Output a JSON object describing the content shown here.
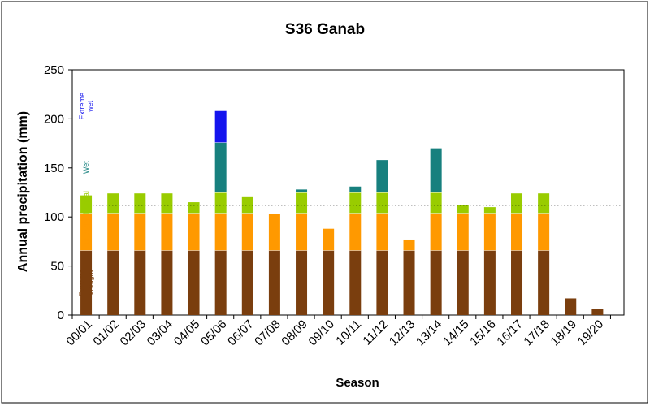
{
  "chart_data": {
    "type": "bar",
    "title": "S36 Ganab",
    "xlabel": "Season",
    "ylabel": "Annual precipitation (mm)",
    "ylim": [
      0,
      250
    ],
    "yticks": [
      0,
      50,
      100,
      150,
      200,
      250
    ],
    "categories": [
      "00/01",
      "01/02",
      "02/03",
      "03/04",
      "04/05",
      "05/06",
      "06/07",
      "07/08",
      "08/09",
      "09/10",
      "10/11",
      "11/12",
      "12/13",
      "13/14",
      "14/15",
      "15/16",
      "16/17",
      "17/18",
      "18/19",
      "19/20"
    ],
    "values": [
      122,
      124,
      124,
      124,
      115,
      208,
      121,
      103,
      128,
      88,
      131,
      158,
      77,
      170,
      112,
      110,
      124,
      124,
      17,
      6
    ],
    "reference_line": 112,
    "grid": false,
    "bands": [
      {
        "name": "Extreme drought",
        "label_lines": [
          "Extreme",
          "drought"
        ],
        "from": 0,
        "to": 66,
        "color": "#7a3e0e",
        "label_color": "#7a3e0e"
      },
      {
        "name": "Drought",
        "label_lines": [
          "Drought"
        ],
        "from": 66,
        "to": 104,
        "color": "#ff9900",
        "label_color": "#ff9900"
      },
      {
        "name": "Normal",
        "label_lines": [
          "Normal"
        ],
        "from": 104,
        "to": 125,
        "color": "#99cc00",
        "label_color": "#99cc00"
      },
      {
        "name": "Wet",
        "label_lines": [
          "Wet"
        ],
        "from": 125,
        "to": 176,
        "color": "#17807e",
        "label_color": "#17807e"
      },
      {
        "name": "Extreme wet",
        "label_lines": [
          "Extreme",
          "wet"
        ],
        "from": 176,
        "to": 250,
        "color": "#1414ee",
        "label_color": "#1414ee"
      }
    ]
  }
}
